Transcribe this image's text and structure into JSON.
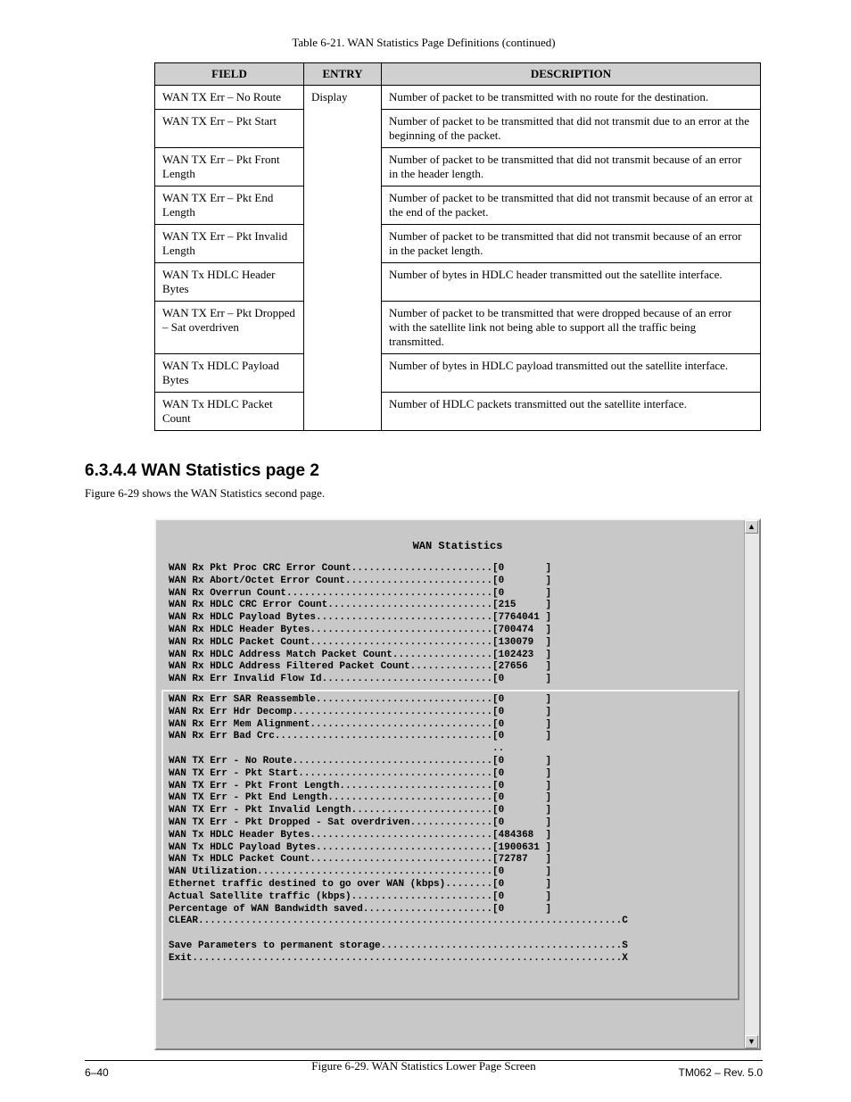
{
  "caption": "Table 6-21. WAN Statistics Page Definitions (continued)",
  "table": {
    "columns": [
      "FIELD",
      "ENTRY",
      "DESCRIPTION"
    ],
    "rows": [
      {
        "field": "WAN TX Err – No Route",
        "entry": "Display",
        "desc": "Number of packet to be transmitted with no route for the destination."
      },
      {
        "field": "WAN TX Err – Pkt Start",
        "entry": "",
        "desc": "Number of packet to be transmitted that did not transmit due to an error at the beginning of the packet."
      },
      {
        "field": "WAN TX Err – Pkt Front Length",
        "entry": "",
        "desc": "Number of packet to be transmitted that did not transmit because of an error in the header length."
      },
      {
        "field": "WAN TX Err – Pkt End Length",
        "entry": "",
        "desc": "Number of packet to be transmitted that did not transmit because of an error at the end of the packet."
      },
      {
        "field": "WAN TX Err – Pkt Invalid Length",
        "entry": "",
        "desc": "Number of packet to be transmitted that did not transmit because of an error in the packet length."
      },
      {
        "field": "WAN Tx HDLC Header Bytes",
        "entry": "",
        "desc": "Number of bytes in HDLC header transmitted out the satellite interface."
      },
      {
        "field": "WAN TX Err – Pkt Dropped – Sat overdriven",
        "entry": "",
        "desc": "Number of packet to be transmitted that were dropped because of an error with the satellite link not being able to support all the traffic being transmitted."
      },
      {
        "field": "WAN Tx HDLC Payload Bytes",
        "entry": "",
        "desc": "Number of bytes in HDLC payload transmitted out the satellite interface."
      },
      {
        "field": "WAN Tx HDLC Packet Count",
        "entry": "",
        "desc": "Number of HDLC packets transmitted out the satellite interface."
      }
    ]
  },
  "section": {
    "heading": "6.3.4.4 WAN Statistics page 2",
    "lead": "Figure 6-29 shows the WAN Statistics second page."
  },
  "term": {
    "title": "WAN Statistics",
    "upper": [
      {
        "label": "WAN Rx Pkt Proc CRC Error Count",
        "val": "0"
      },
      {
        "label": "WAN Rx Abort/Octet Error Count",
        "val": "0"
      },
      {
        "label": "WAN Rx Overrun Count",
        "val": "0"
      },
      {
        "label": "WAN Rx HDLC CRC Error Count",
        "val": "215"
      },
      {
        "label": "WAN Rx HDLC Payload Bytes",
        "val": "7764041"
      },
      {
        "label": "WAN Rx HDLC Header Bytes",
        "val": "700474"
      },
      {
        "label": "WAN Rx HDLC Packet Count",
        "val": "130079"
      },
      {
        "label": "WAN Rx HDLC Address Match Packet Count",
        "val": "102423"
      },
      {
        "label": "WAN Rx HDLC Address Filtered Packet Count",
        "val": "27656"
      },
      {
        "label": "WAN Rx Err Invalid Flow Id",
        "val": "0"
      }
    ],
    "box": [
      {
        "label": "WAN Rx Err SAR Reassemble",
        "val": "0"
      },
      {
        "label": "WAN Rx Err Hdr Decomp",
        "val": "0"
      },
      {
        "label": "WAN Rx Err Mem Alignment",
        "val": "0"
      },
      {
        "label": "WAN Rx Err Bad Crc",
        "val": "0"
      },
      {
        "sep": true
      },
      {
        "label": "WAN TX Err - No Route",
        "val": "0"
      },
      {
        "label": "WAN TX Err - Pkt Start",
        "val": "0"
      },
      {
        "label": "WAN TX Err - Pkt Front Length",
        "val": "0"
      },
      {
        "label": "WAN TX Err - Pkt End Length",
        "val": "0"
      },
      {
        "label": "WAN TX Err - Pkt Invalid Length",
        "val": "0"
      },
      {
        "label": "WAN TX Err - Pkt Dropped - Sat overdriven",
        "val": "0"
      },
      {
        "label": "WAN Tx HDLC Header Bytes",
        "val": "484368"
      },
      {
        "label": "WAN Tx HDLC Payload Bytes",
        "val": "1900631"
      },
      {
        "label": "WAN Tx HDLC Packet Count",
        "val": "72787"
      },
      {
        "label": "WAN Utilization",
        "val": "0"
      },
      {
        "label": "Ethernet traffic destined to go over WAN (kbps)",
        "val": "0"
      },
      {
        "label": "Actual Satellite traffic (kbps)",
        "val": "0"
      },
      {
        "label": "Percentage of WAN Bandwidth saved",
        "val": "0"
      },
      {
        "cmd": "CLEAR",
        "key": "C"
      },
      {
        "blank": true
      },
      {
        "cmd": "Save Parameters to permanent storage",
        "key": "S"
      },
      {
        "cmd": "Exit",
        "key": "X"
      }
    ],
    "fig": "Figure 6-29. WAN Statistics Lower Page Screen"
  },
  "footer": {
    "left": "6–40",
    "right": "TM062 – Rev. 5.0"
  }
}
